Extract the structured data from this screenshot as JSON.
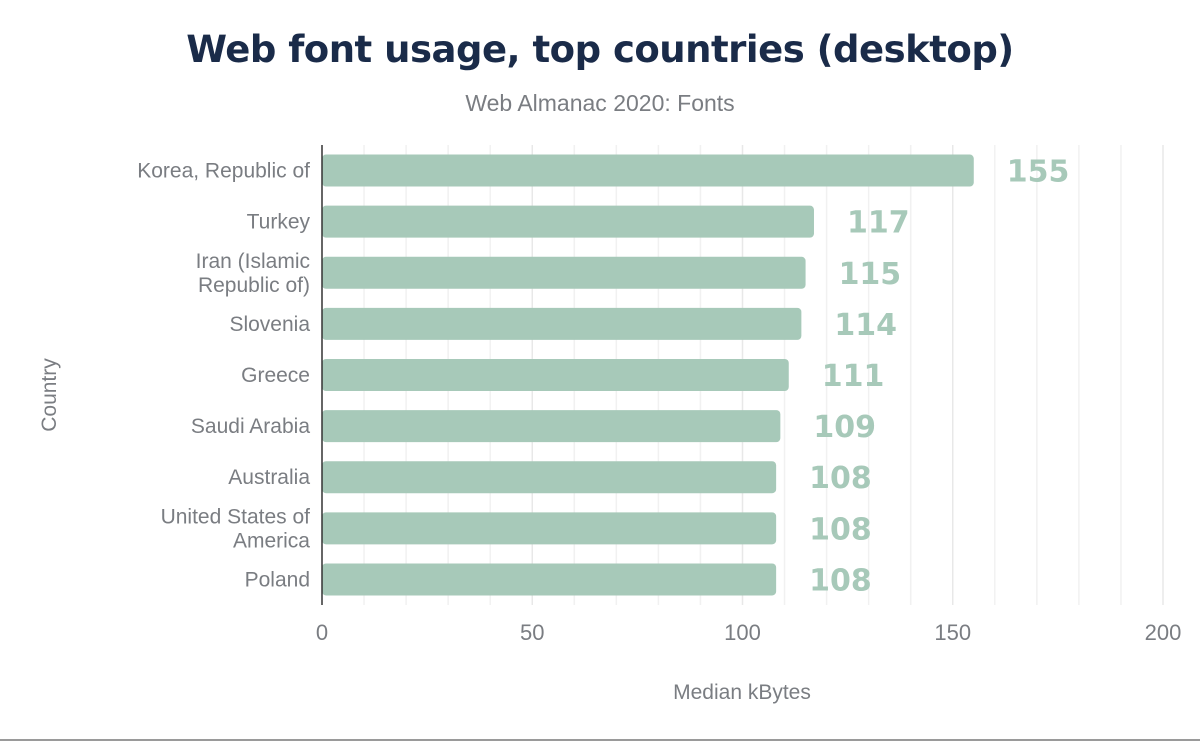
{
  "chart_data": {
    "type": "bar",
    "orientation": "horizontal",
    "title": "Web font usage, top countries (desktop)",
    "subtitle": "Web Almanac 2020: Fonts",
    "xlabel": "Median kBytes",
    "ylabel": "Country",
    "categories": [
      [
        "Korea, Republic of"
      ],
      [
        "Turkey"
      ],
      [
        "Iran (Islamic",
        "Republic of)"
      ],
      [
        "Slovenia"
      ],
      [
        "Greece"
      ],
      [
        "Saudi Arabia"
      ],
      [
        "Australia"
      ],
      [
        "United States of",
        "America"
      ],
      [
        "Poland"
      ]
    ],
    "values": [
      155,
      117,
      115,
      114,
      111,
      109,
      108,
      108,
      108
    ],
    "xlim": [
      0,
      200
    ],
    "xticks": [
      0,
      50,
      100,
      150,
      200
    ],
    "grid": true,
    "data_labels": true,
    "colors": {
      "bar": "#a7c9b9",
      "label": "#a7c9b9",
      "title": "#1a2b49",
      "text": "#7a7d82"
    }
  }
}
